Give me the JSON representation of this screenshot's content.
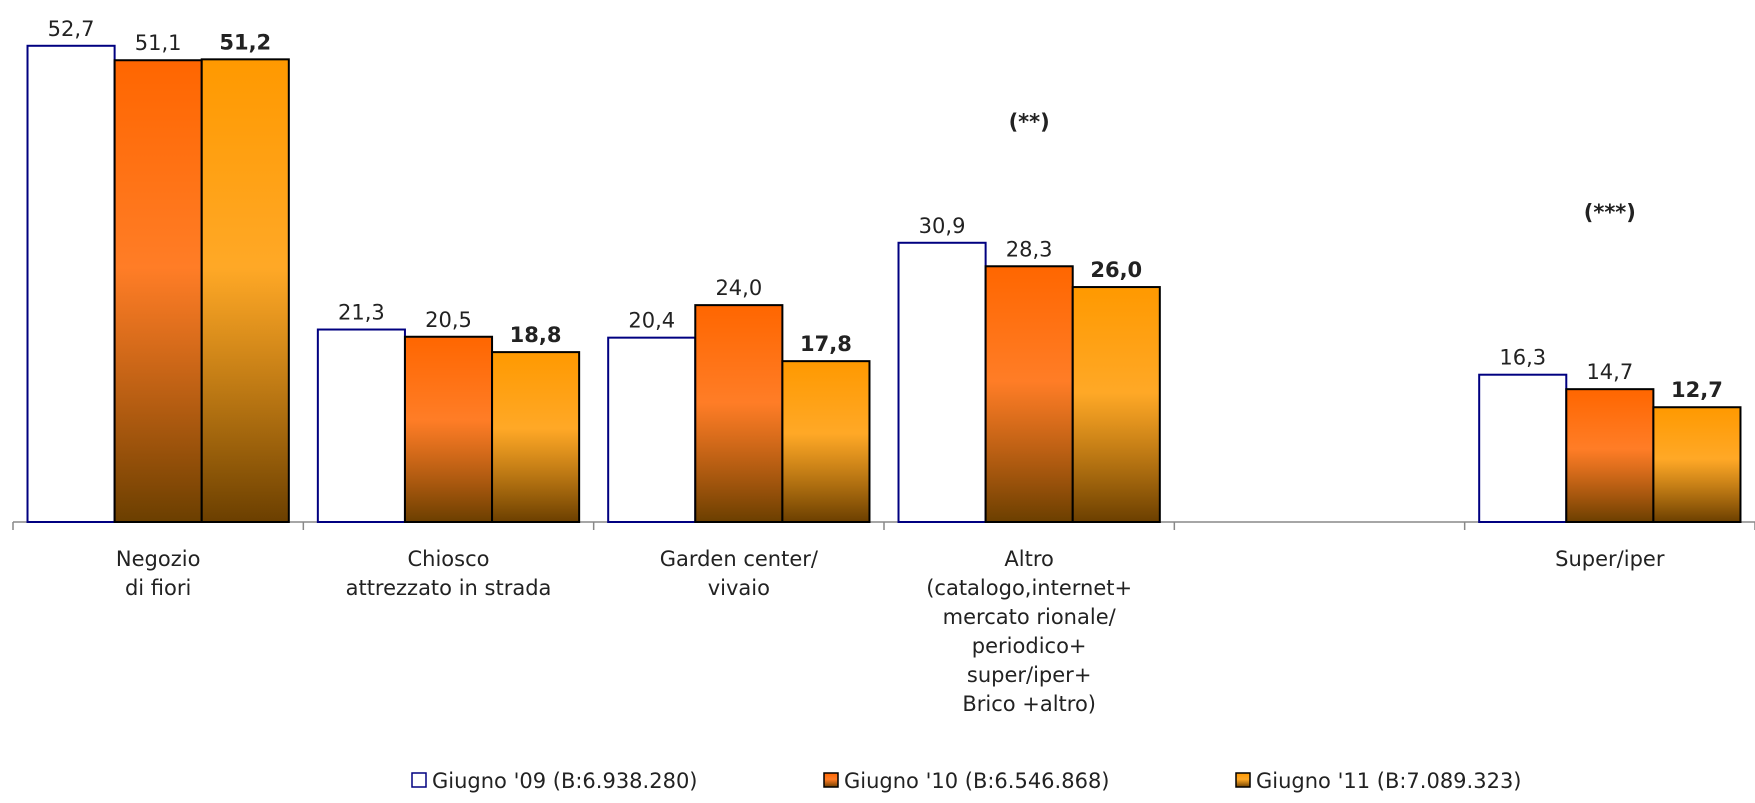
{
  "chart_data": {
    "type": "bar",
    "categories": [
      "Negozio\ndi fiori",
      "Chiosco\nattrezzato in strada",
      "Garden center/\nvivaio",
      "Altro\n(catalogo,internet+\nmercato rionale/\nperiodico+\nsuper/iper+\nBrico +altro)",
      null,
      "Super/iper"
    ],
    "series": [
      {
        "name": "Giugno '09 (B:6.938.280)",
        "color": "#ffffff",
        "edge_color": "#000080",
        "gradient": false,
        "bold_labels": false,
        "values": [
          52.7,
          21.3,
          20.4,
          30.9,
          null,
          16.3
        ],
        "value_labels": [
          "52,7",
          "21,3",
          "20,4",
          "30,9",
          null,
          "16,3"
        ]
      },
      {
        "name": "Giugno '10 (B:6.546.868)",
        "color": "#ff6600",
        "edge_color": "#000000",
        "gradient": true,
        "bold_labels": false,
        "values": [
          51.1,
          20.5,
          24.0,
          28.3,
          null,
          14.7
        ],
        "value_labels": [
          "51,1",
          "20,5",
          "24,0",
          "28,3",
          null,
          "14,7"
        ]
      },
      {
        "name": "Giugno '11 (B:7.089.323)",
        "color": "#ff9900",
        "edge_color": "#000000",
        "gradient": true,
        "bold_labels": true,
        "values": [
          51.2,
          18.8,
          17.8,
          26.0,
          null,
          12.7
        ],
        "value_labels": [
          "51,2",
          "18,8",
          "17,8",
          "26,0",
          null,
          "12,7"
        ]
      }
    ],
    "annotations": [
      {
        "text": "(**)",
        "category": 3,
        "value": 43.5
      },
      {
        "text": "(***)",
        "category": 5,
        "value": 33.5
      }
    ],
    "ylim": [
      0,
      55
    ],
    "legend": "bottom"
  }
}
